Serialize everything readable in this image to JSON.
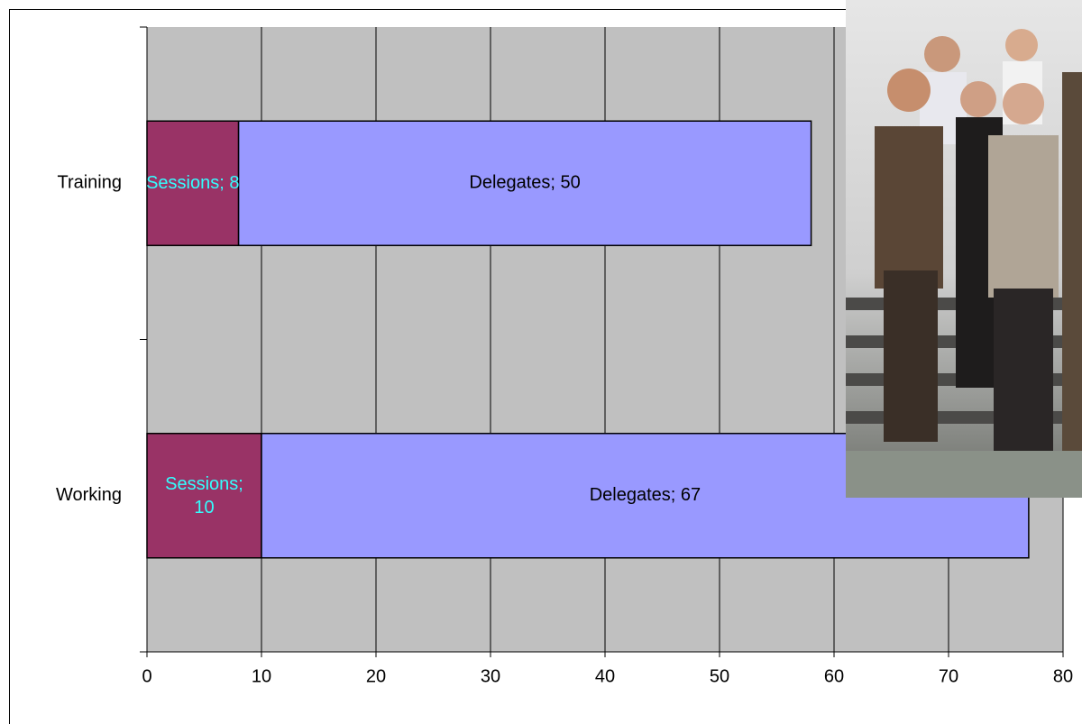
{
  "chart_data": {
    "type": "stacked-bar-horizontal",
    "categories": [
      "Training",
      "Working"
    ],
    "series": [
      {
        "name": "Sessions",
        "color": "#993366",
        "label_color": "#33ffff",
        "values": [
          8,
          10
        ],
        "value_labels": [
          "Sessions; 8",
          "Sessions; 10"
        ]
      },
      {
        "name": "Delegates",
        "color": "#9999ff",
        "label_color": "#000000",
        "values": [
          50,
          67
        ],
        "value_labels": [
          "Delegates; 50",
          "Delegates; 67"
        ]
      }
    ],
    "xlim": [
      0,
      80
    ],
    "xticks": [
      0,
      10,
      20,
      30,
      40,
      50,
      60,
      70,
      80
    ],
    "grid": true,
    "plot_background": "#c0c0c0"
  }
}
